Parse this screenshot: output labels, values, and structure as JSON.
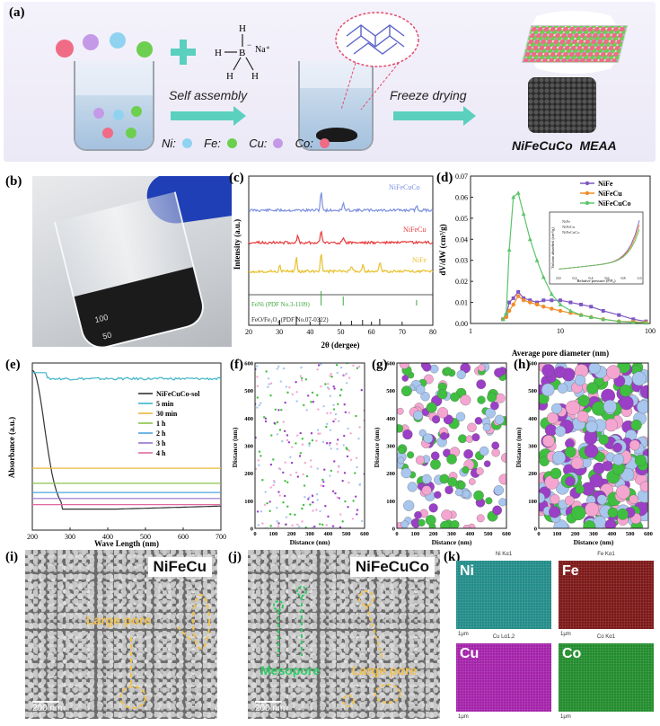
{
  "panel_labels": [
    "(a)",
    "(b)",
    "(c)",
    "(d)",
    "(e)",
    "(f)",
    "(g)",
    "(h)",
    "(i)",
    "(j)",
    "(k)"
  ],
  "schematic": {
    "boron_formula": {
      "h_left": "H",
      "b": "B",
      "na": "Na⁺",
      "h_top": "H",
      "h_bl": "H",
      "h_br": "H",
      "minus": "−"
    },
    "step1": "Self assembly",
    "step2": "Freeze drying",
    "legend": [
      {
        "label": "Ni:",
        "color": "#8fd3f0"
      },
      {
        "label": "Fe:",
        "color": "#6ccf4f"
      },
      {
        "label": "Cu:",
        "color": "#c49ae8"
      },
      {
        "label": "Co:",
        "color": "#f06b86"
      }
    ],
    "product": "NiFeCuCo  MEAA"
  },
  "xrd": {
    "ylabel": "Intensity (a.u.)",
    "xlabel": "2θ (dergee)",
    "xticks": [
      "20",
      "30",
      "40",
      "50",
      "60",
      "70",
      "80"
    ],
    "series": [
      {
        "name": "NiFeCuCo",
        "color": "#7b8fe0"
      },
      {
        "name": "NiFeCu",
        "color": "#e63a3a"
      },
      {
        "name": "NiFe",
        "color": "#e8c02c"
      }
    ],
    "ref1": "FeNi (PDF No.3-1109)",
    "ref2": "FeO/Fe₃O₄ (PDF No.07-0322)",
    "ref1_color": "#3ea63e"
  },
  "chart_data": [
    {
      "type": "line",
      "panel": "(d)",
      "xlabel": "Average pore diameter (nm)",
      "ylabel": "dV/dW (cm³/g)",
      "xscale": "log",
      "xlim": [
        1,
        100
      ],
      "ylim": [
        0,
        0.07
      ],
      "yticks": [
        "0.00",
        "0.01",
        "0.02",
        "0.03",
        "0.04",
        "0.05",
        "0.06",
        "0.07"
      ],
      "xticks": [
        "1",
        "10",
        "100"
      ],
      "legend_position": "top-right",
      "series": [
        {
          "name": "NiFe",
          "color": "#7e57c2",
          "x": [
            2.3,
            2.5,
            2.7,
            3.0,
            3.4,
            3.9,
            4.6,
            5.5,
            6.5,
            8,
            10,
            13,
            17,
            22,
            30,
            45,
            65,
            90
          ],
          "y": [
            0.002,
            0.004,
            0.01,
            0.012,
            0.015,
            0.012,
            0.011,
            0.01,
            0.011,
            0.011,
            0.011,
            0.01,
            0.009,
            0.008,
            0.006,
            0.004,
            0.002,
            0.001
          ]
        },
        {
          "name": "NiFeCu",
          "color": "#f28c28",
          "x": [
            2.3,
            2.5,
            2.7,
            3.0,
            3.4,
            3.9,
            4.6,
            5.5,
            6.5,
            8,
            10,
            13,
            17,
            22,
            30,
            45,
            65,
            90
          ],
          "y": [
            0.002,
            0.003,
            0.006,
            0.009,
            0.013,
            0.011,
            0.01,
            0.009,
            0.008,
            0.007,
            0.006,
            0.005,
            0.004,
            0.003,
            0.002,
            0.001,
            0.0008,
            0.0005
          ]
        },
        {
          "name": "NiFeCuCo",
          "color": "#5cc46a",
          "x": [
            2.3,
            2.5,
            2.7,
            3.0,
            3.4,
            3.9,
            4.6,
            5.5,
            6.5,
            8,
            10,
            13,
            17,
            22,
            30,
            45,
            65,
            90
          ],
          "y": [
            0.002,
            0.005,
            0.035,
            0.06,
            0.062,
            0.052,
            0.04,
            0.03,
            0.022,
            0.014,
            0.009,
            0.006,
            0.004,
            0.003,
            0.002,
            0.001,
            0.0005,
            0.0003
          ]
        }
      ],
      "inset": {
        "xlabel": "Relative pressure (P/P₀)",
        "ylabel": "Volume absorbed (cm³/g)",
        "xticks": [
          "0.0",
          "0.2",
          "0.4",
          "0.6",
          "0.8",
          "1.0"
        ],
        "series": [
          "NiFe",
          "NiFeCu",
          "NiFeCuCo"
        ]
      }
    },
    {
      "type": "line",
      "panel": "(e)",
      "xlabel": "Wave Length (nm)",
      "ylabel": "Absorbance (a.u.)",
      "xlim": [
        200,
        700
      ],
      "xticks": [
        "200",
        "300",
        "400",
        "500",
        "600",
        "700"
      ],
      "legend_position": "center-right",
      "series": [
        {
          "name": "NiFeCuCo-sol",
          "color": "#333333",
          "level": 0.1
        },
        {
          "name": "5 min",
          "color": "#3cb4c8",
          "level": 4.4
        },
        {
          "name": "30 min",
          "color": "#e8b93b",
          "level": 1.45
        },
        {
          "name": "1 h",
          "color": "#8bc34a",
          "level": 0.95
        },
        {
          "name": "2 h",
          "color": "#4fa3e0",
          "level": 0.65
        },
        {
          "name": "3 h",
          "color": "#9575cd",
          "level": 0.45
        },
        {
          "name": "4 h",
          "color": "#e06aa0",
          "level": 0.25
        }
      ]
    },
    {
      "type": "scatter",
      "panel": "(f)",
      "xlabel": "Distance (nm)",
      "ylabel": "Distance (nm)",
      "xlim": [
        0,
        600
      ],
      "ylim": [
        0,
        600
      ],
      "xticks": [
        "0",
        "100",
        "200",
        "300",
        "400",
        "500",
        "600"
      ],
      "yticks": [
        "0",
        "100",
        "200",
        "300",
        "400",
        "500",
        "600"
      ]
    },
    {
      "type": "scatter",
      "panel": "(g)",
      "xlabel": "Distance (nm)",
      "ylabel": "Distance (nm)",
      "xlim": [
        0,
        600
      ],
      "ylim": [
        0,
        600
      ],
      "xticks": [
        "0",
        "100",
        "200",
        "300",
        "400",
        "500",
        "600"
      ],
      "yticks": [
        "0",
        "100",
        "200",
        "300",
        "400",
        "500",
        "600"
      ]
    },
    {
      "type": "scatter",
      "panel": "(h)",
      "xlabel": "Distance (nm)",
      "ylabel": "Distance (nm)",
      "xlim": [
        0,
        600
      ],
      "ylim": [
        0,
        600
      ],
      "xticks": [
        "0",
        "100",
        "200",
        "300",
        "400",
        "500",
        "600"
      ],
      "yticks": [
        "0",
        "100",
        "200",
        "300",
        "400",
        "500",
        "600"
      ]
    }
  ],
  "sem_i": {
    "tag": "NiFeCu",
    "note": "Large pore",
    "scale": "200 nm"
  },
  "sem_j": {
    "tag": "NiFeCuCo",
    "note1": "Mesopore",
    "note2": "Large pore",
    "scale": "200 nm"
  },
  "eds": [
    {
      "el": "Ni",
      "top": "Ni Kα1",
      "color": "#1e8a86",
      "scale": "1μm"
    },
    {
      "el": "Fe",
      "top": "Fe Kα1",
      "color": "#7a1414",
      "scale": "1μm"
    },
    {
      "el": "Cu",
      "top": "Cu Lα1,2",
      "color": "#a21fa8",
      "scale": "1μm"
    },
    {
      "el": "Co",
      "top": "Co Kα1",
      "color": "#1e8a2a",
      "scale": "1μm"
    }
  ],
  "photo_b": {
    "marks": [
      "100",
      "50"
    ]
  }
}
